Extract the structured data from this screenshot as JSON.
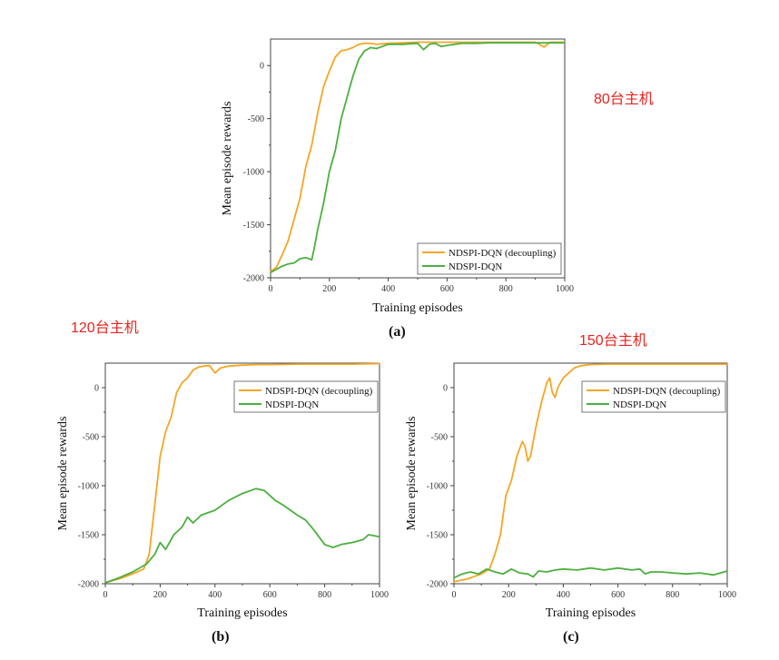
{
  "chart_data": [
    {
      "id": "a",
      "type": "line",
      "panel_label": "(a)",
      "annotation": "80台主机",
      "xlabel": "Training episodes",
      "ylabel": "Mean episode rewards",
      "xlim": [
        0,
        1000
      ],
      "ylim": [
        -2000,
        250
      ],
      "xticks": [
        0,
        200,
        400,
        600,
        800,
        1000
      ],
      "yticks": [
        -2000,
        -1500,
        -1000,
        -500,
        0
      ],
      "legend_position": "bottom-right",
      "series": [
        {
          "name": "NDSPI-DQN (decoupling)",
          "color": "#f5a623",
          "points": [
            [
              0,
              -1940
            ],
            [
              20,
              -1900
            ],
            [
              40,
              -1780
            ],
            [
              60,
              -1650
            ],
            [
              80,
              -1450
            ],
            [
              100,
              -1250
            ],
            [
              120,
              -950
            ],
            [
              140,
              -750
            ],
            [
              160,
              -450
            ],
            [
              180,
              -200
            ],
            [
              200,
              -50
            ],
            [
              220,
              80
            ],
            [
              240,
              140
            ],
            [
              260,
              150
            ],
            [
              280,
              170
            ],
            [
              300,
              200
            ],
            [
              320,
              210
            ],
            [
              340,
              210
            ],
            [
              360,
              200
            ],
            [
              380,
              205
            ],
            [
              400,
              210
            ],
            [
              450,
              215
            ],
            [
              500,
              220
            ],
            [
              550,
              220
            ],
            [
              600,
              220
            ],
            [
              650,
              220
            ],
            [
              700,
              220
            ],
            [
              750,
              220
            ],
            [
              800,
              220
            ],
            [
              850,
              220
            ],
            [
              900,
              220
            ],
            [
              930,
              175
            ],
            [
              950,
              220
            ],
            [
              1000,
              220
            ]
          ]
        },
        {
          "name": "NDSPI-DQN",
          "color": "#4caf3f",
          "points": [
            [
              0,
              -1950
            ],
            [
              20,
              -1920
            ],
            [
              40,
              -1890
            ],
            [
              60,
              -1870
            ],
            [
              80,
              -1860
            ],
            [
              100,
              -1820
            ],
            [
              120,
              -1810
            ],
            [
              140,
              -1830
            ],
            [
              150,
              -1700
            ],
            [
              160,
              -1550
            ],
            [
              180,
              -1300
            ],
            [
              200,
              -1000
            ],
            [
              220,
              -800
            ],
            [
              240,
              -500
            ],
            [
              260,
              -300
            ],
            [
              280,
              -100
            ],
            [
              300,
              60
            ],
            [
              320,
              140
            ],
            [
              340,
              170
            ],
            [
              360,
              160
            ],
            [
              380,
              180
            ],
            [
              400,
              200
            ],
            [
              450,
              200
            ],
            [
              500,
              210
            ],
            [
              520,
              150
            ],
            [
              540,
              200
            ],
            [
              560,
              210
            ],
            [
              580,
              180
            ],
            [
              600,
              190
            ],
            [
              650,
              210
            ],
            [
              700,
              210
            ],
            [
              750,
              215
            ],
            [
              800,
              215
            ],
            [
              850,
              215
            ],
            [
              900,
              215
            ],
            [
              950,
              215
            ],
            [
              1000,
              215
            ]
          ]
        }
      ]
    },
    {
      "id": "b",
      "type": "line",
      "panel_label": "(b)",
      "annotation": "120台主机",
      "xlabel": "Training episodes",
      "ylabel": "Mean episode rewards",
      "xlim": [
        0,
        1000
      ],
      "ylim": [
        -2000,
        250
      ],
      "xticks": [
        0,
        200,
        400,
        600,
        800,
        1000
      ],
      "yticks": [
        -2000,
        -1500,
        -1000,
        -500,
        0
      ],
      "legend_position": "top-right",
      "series": [
        {
          "name": "NDSPI-DQN (decoupling)",
          "color": "#f5a623",
          "points": [
            [
              0,
              -1990
            ],
            [
              50,
              -1950
            ],
            [
              100,
              -1900
            ],
            [
              140,
              -1850
            ],
            [
              160,
              -1700
            ],
            [
              180,
              -1200
            ],
            [
              200,
              -700
            ],
            [
              220,
              -450
            ],
            [
              240,
              -300
            ],
            [
              260,
              -50
            ],
            [
              280,
              50
            ],
            [
              300,
              100
            ],
            [
              320,
              180
            ],
            [
              340,
              210
            ],
            [
              360,
              220
            ],
            [
              380,
              225
            ],
            [
              400,
              150
            ],
            [
              420,
              200
            ],
            [
              450,
              220
            ],
            [
              500,
              230
            ],
            [
              550,
              235
            ],
            [
              600,
              235
            ],
            [
              700,
              240
            ],
            [
              800,
              240
            ],
            [
              900,
              240
            ],
            [
              1000,
              245
            ]
          ]
        },
        {
          "name": "NDSPI-DQN",
          "color": "#4caf3f",
          "points": [
            [
              0,
              -1990
            ],
            [
              50,
              -1940
            ],
            [
              100,
              -1880
            ],
            [
              150,
              -1800
            ],
            [
              180,
              -1700
            ],
            [
              200,
              -1580
            ],
            [
              220,
              -1650
            ],
            [
              250,
              -1500
            ],
            [
              280,
              -1420
            ],
            [
              300,
              -1320
            ],
            [
              320,
              -1380
            ],
            [
              350,
              -1300
            ],
            [
              400,
              -1250
            ],
            [
              450,
              -1150
            ],
            [
              500,
              -1080
            ],
            [
              550,
              -1030
            ],
            [
              580,
              -1050
            ],
            [
              620,
              -1150
            ],
            [
              650,
              -1200
            ],
            [
              700,
              -1300
            ],
            [
              730,
              -1350
            ],
            [
              760,
              -1450
            ],
            [
              800,
              -1600
            ],
            [
              830,
              -1630
            ],
            [
              860,
              -1600
            ],
            [
              900,
              -1580
            ],
            [
              940,
              -1550
            ],
            [
              960,
              -1500
            ],
            [
              1000,
              -1520
            ]
          ]
        }
      ]
    },
    {
      "id": "c",
      "type": "line",
      "panel_label": "(c)",
      "annotation": "150台主机",
      "xlabel": "Training episodes",
      "ylabel": "Mean episode rewards",
      "xlim": [
        0,
        1000
      ],
      "ylim": [
        -2000,
        250
      ],
      "xticks": [
        0,
        200,
        400,
        600,
        800,
        1000
      ],
      "yticks": [
        -2000,
        -1500,
        -1000,
        -500,
        0
      ],
      "legend_position": "top-right",
      "series": [
        {
          "name": "NDSPI-DQN (decoupling)",
          "color": "#f5a623",
          "points": [
            [
              0,
              -1980
            ],
            [
              50,
              -1950
            ],
            [
              100,
              -1900
            ],
            [
              130,
              -1850
            ],
            [
              150,
              -1700
            ],
            [
              170,
              -1500
            ],
            [
              190,
              -1100
            ],
            [
              210,
              -950
            ],
            [
              230,
              -700
            ],
            [
              250,
              -550
            ],
            [
              260,
              -600
            ],
            [
              270,
              -750
            ],
            [
              280,
              -700
            ],
            [
              300,
              -400
            ],
            [
              320,
              -150
            ],
            [
              340,
              50
            ],
            [
              350,
              100
            ],
            [
              360,
              -50
            ],
            [
              370,
              -100
            ],
            [
              380,
              0
            ],
            [
              400,
              100
            ],
            [
              420,
              150
            ],
            [
              440,
              200
            ],
            [
              460,
              220
            ],
            [
              480,
              230
            ],
            [
              500,
              235
            ],
            [
              550,
              240
            ],
            [
              600,
              240
            ],
            [
              700,
              240
            ],
            [
              800,
              240
            ],
            [
              900,
              240
            ],
            [
              1000,
              240
            ]
          ]
        },
        {
          "name": "NDSPI-DQN",
          "color": "#4caf3f",
          "points": [
            [
              0,
              -1940
            ],
            [
              30,
              -1900
            ],
            [
              60,
              -1880
            ],
            [
              90,
              -1900
            ],
            [
              120,
              -1850
            ],
            [
              150,
              -1880
            ],
            [
              180,
              -1900
            ],
            [
              210,
              -1850
            ],
            [
              240,
              -1890
            ],
            [
              270,
              -1900
            ],
            [
              290,
              -1930
            ],
            [
              310,
              -1870
            ],
            [
              340,
              -1880
            ],
            [
              370,
              -1860
            ],
            [
              400,
              -1850
            ],
            [
              450,
              -1860
            ],
            [
              500,
              -1840
            ],
            [
              550,
              -1860
            ],
            [
              600,
              -1840
            ],
            [
              650,
              -1860
            ],
            [
              680,
              -1850
            ],
            [
              700,
              -1900
            ],
            [
              720,
              -1880
            ],
            [
              760,
              -1880
            ],
            [
              800,
              -1890
            ],
            [
              850,
              -1900
            ],
            [
              900,
              -1890
            ],
            [
              950,
              -1910
            ],
            [
              1000,
              -1870
            ]
          ]
        }
      ]
    }
  ]
}
